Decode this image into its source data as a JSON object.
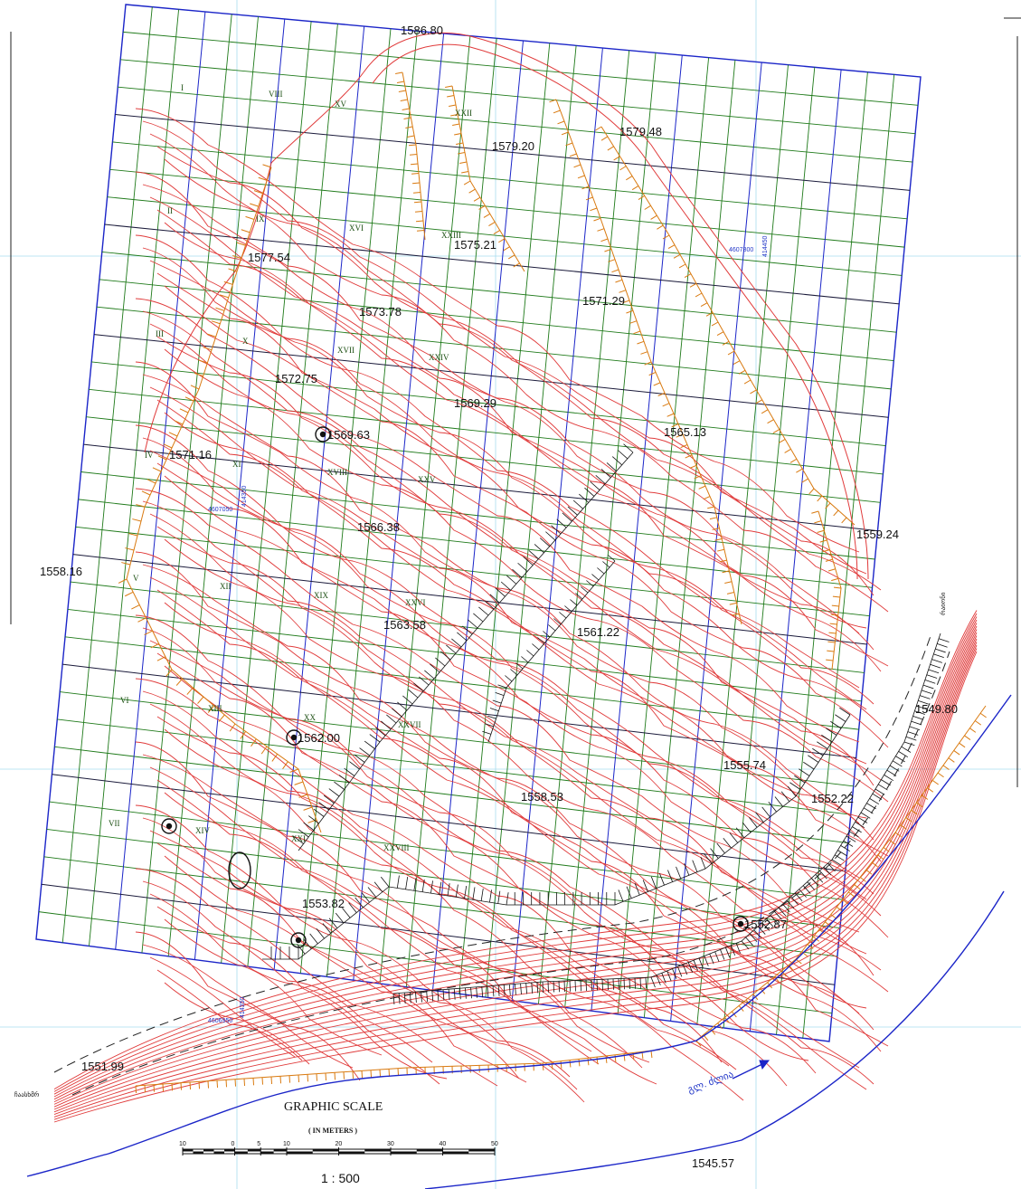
{
  "elevations": [
    "1586.80",
    "1579.48",
    "1579.20",
    "1575.21",
    "1577.54",
    "1571.29",
    "1573.78",
    "1572.75",
    "1569.29",
    "1569.63",
    "1565.13",
    "1571.16",
    "1566.38",
    "1559.24",
    "1558.16",
    "1563.58",
    "1561.22",
    "1549.80",
    "1562.00",
    "1555.74",
    "1558.53",
    "1552.22",
    "1553.82",
    "1552.87",
    "1551.99",
    "1545.57"
  ],
  "sections": [
    "I",
    "VIII",
    "XV",
    "XXII",
    "II",
    "IX",
    "XVI",
    "XXIII",
    "III",
    "X",
    "XVII",
    "XXIV",
    "IV",
    "XI",
    "XVIII",
    "XXV",
    "V",
    "XII",
    "XIX",
    "XXVI",
    "VI",
    "XIII",
    "XX",
    "XXVII",
    "VII",
    "XIV",
    "XXI",
    "XXVIII"
  ],
  "grid_coords": [
    "4607300",
    "414450",
    "4607050",
    "414350",
    "4606950",
    "414350"
  ],
  "river_label": "გლ. ძლია",
  "side_label": "რაიონი",
  "left_label": "ჩაასხმრ",
  "scale": {
    "title": "GRAPHIC SCALE",
    "units": "( IN METERS )",
    "ticks": [
      "10",
      "0",
      "5",
      "10",
      "20",
      "30",
      "40",
      "50"
    ],
    "ratio": "1 : 500"
  },
  "colors": {
    "contour": "#e03a3a",
    "grid_green": "#1f7a1a",
    "grid_blue": "#1b25c8",
    "fine_grid": "#9fd8ee",
    "slope": "#d97a10"
  }
}
